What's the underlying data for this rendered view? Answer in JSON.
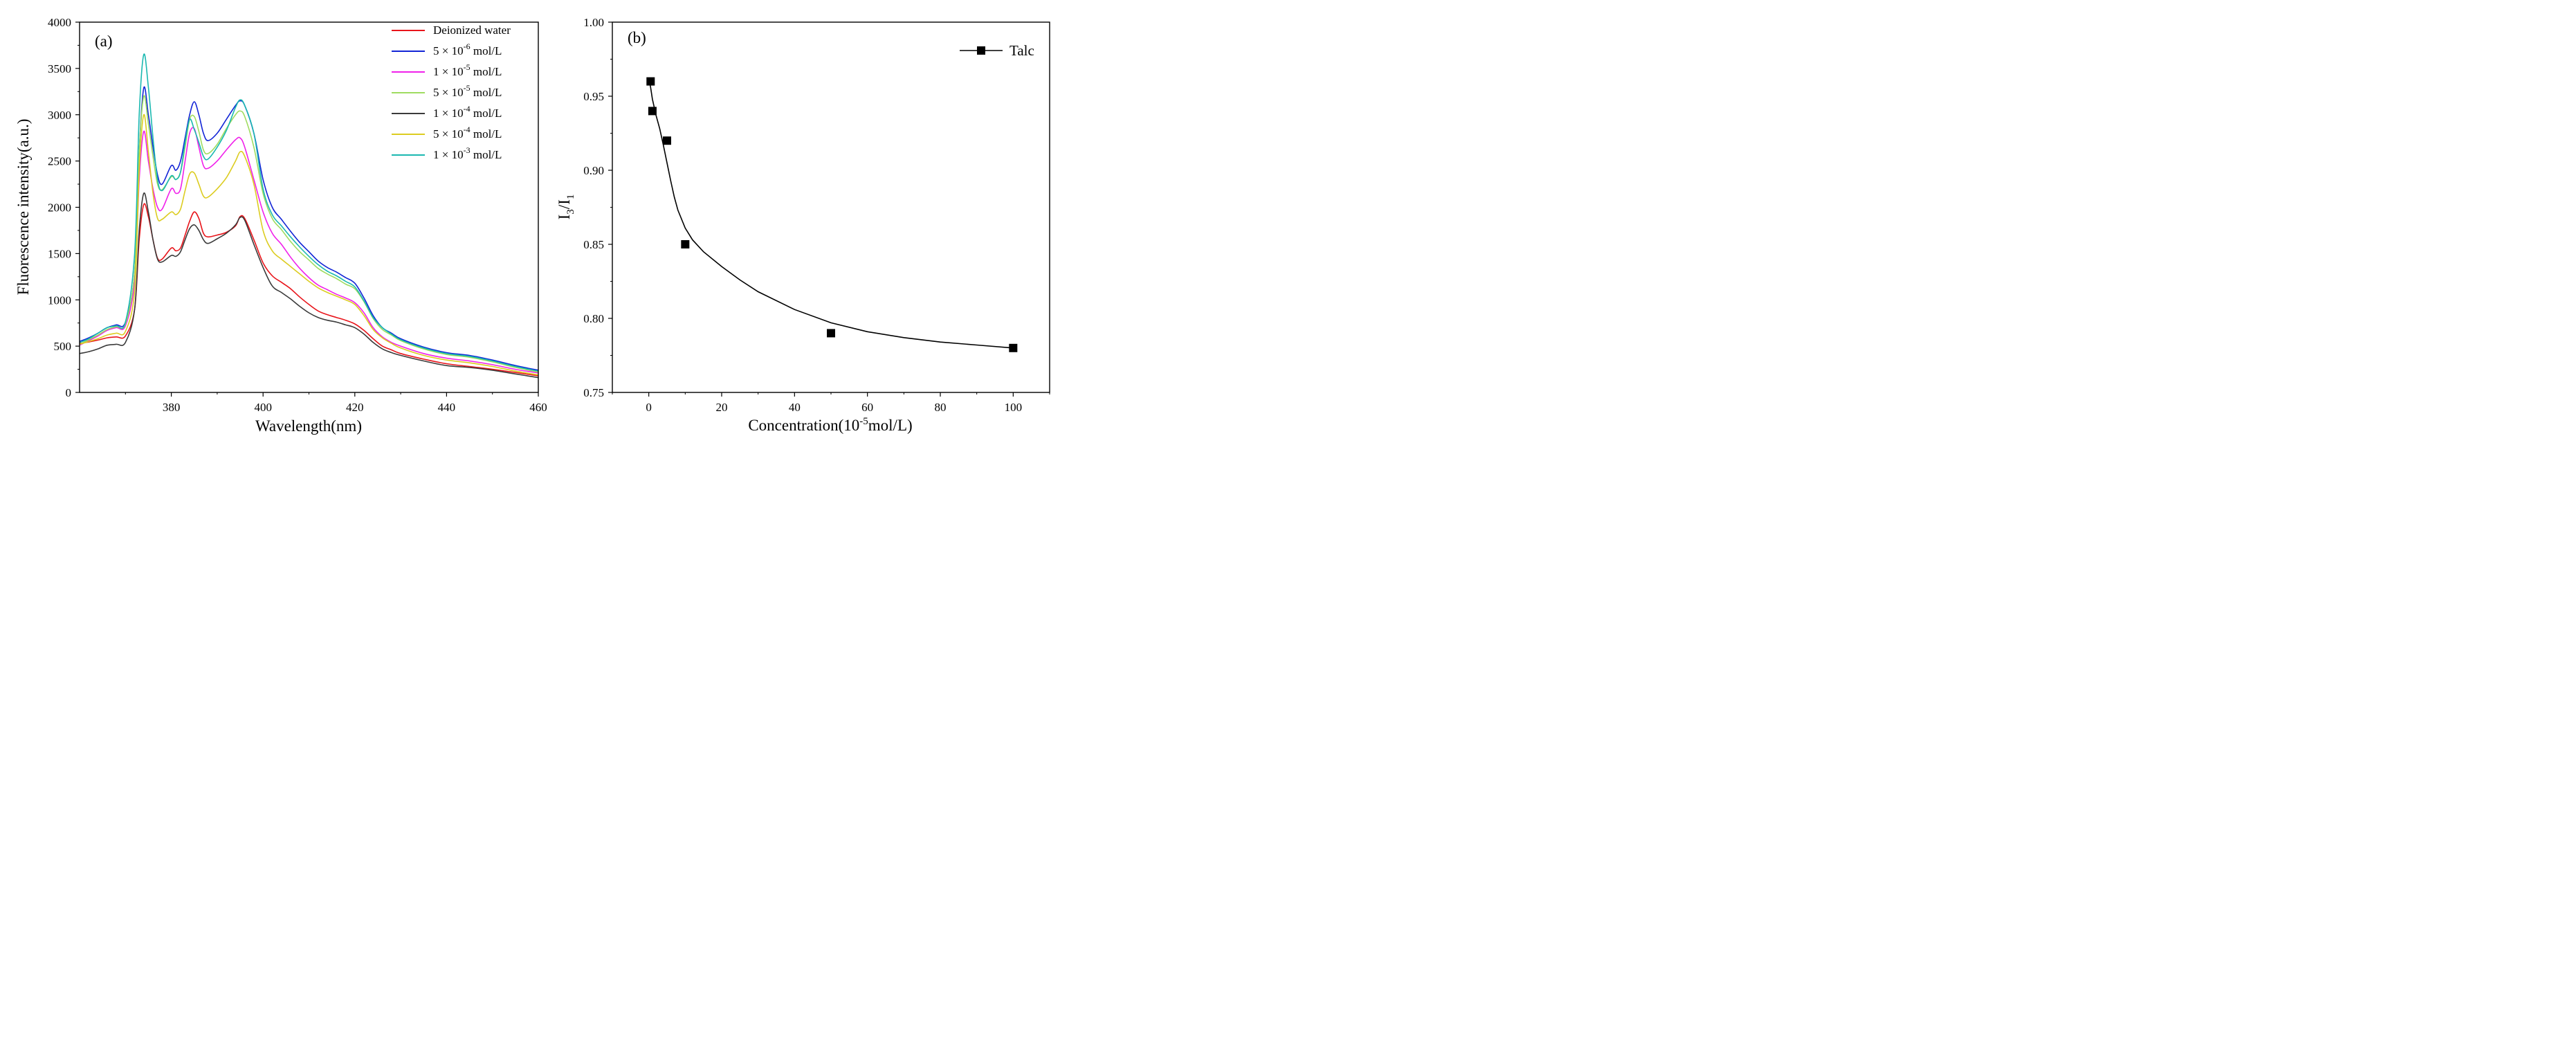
{
  "chart_data": [
    {
      "type": "line",
      "panel_label": "(a)",
      "xlabel": "Wavelength(nm)",
      "ylabel": "Fluorescence intensity(a.u.)",
      "xlim": [
        360,
        460
      ],
      "ylim": [
        0,
        4000
      ],
      "xticks": [
        380,
        400,
        420,
        440,
        460
      ],
      "yticks": [
        0,
        500,
        1000,
        1500,
        2000,
        2500,
        3000,
        3500,
        4000
      ],
      "legend_position": "top-right",
      "x": [
        360,
        362,
        364,
        366,
        368,
        370,
        372,
        373,
        374,
        375,
        376,
        377,
        378,
        380,
        381,
        382,
        383,
        384,
        385,
        386,
        387,
        388,
        390,
        392,
        394,
        395,
        396,
        398,
        400,
        402,
        404,
        406,
        408,
        410,
        412,
        414,
        416,
        418,
        420,
        422,
        424,
        426,
        428,
        430,
        435,
        440,
        445,
        450,
        455,
        460
      ],
      "series": [
        {
          "name": "Deionized water",
          "color": "#e8141a",
          "values": [
            530,
            545,
            565,
            590,
            600,
            610,
            900,
            1650,
            2030,
            1900,
            1650,
            1450,
            1440,
            1560,
            1530,
            1560,
            1700,
            1850,
            1950,
            1880,
            1720,
            1680,
            1700,
            1730,
            1800,
            1900,
            1880,
            1650,
            1400,
            1260,
            1190,
            1120,
            1030,
            950,
            880,
            840,
            810,
            780,
            740,
            670,
            580,
            500,
            460,
            420,
            360,
            310,
            280,
            250,
            215,
            180
          ]
        },
        {
          "name": "5 × 10",
          "sup": "-6",
          "unit": " mol/L",
          "color": "#1224d6",
          "values": [
            550,
            590,
            640,
            700,
            730,
            760,
            1300,
            2600,
            3290,
            3000,
            2650,
            2350,
            2250,
            2450,
            2400,
            2500,
            2750,
            3000,
            3140,
            3000,
            2800,
            2720,
            2800,
            2950,
            3100,
            3150,
            3100,
            2800,
            2300,
            2000,
            1870,
            1740,
            1620,
            1520,
            1420,
            1350,
            1300,
            1240,
            1180,
            1020,
            830,
            700,
            640,
            580,
            490,
            430,
            400,
            350,
            290,
            240
          ]
        },
        {
          "name": "1 × 10",
          "sup": "-5",
          "unit": " mol/L",
          "color": "#f020ea",
          "values": [
            510,
            560,
            610,
            670,
            700,
            720,
            1200,
            2300,
            2820,
            2500,
            2200,
            2000,
            1980,
            2200,
            2150,
            2200,
            2500,
            2800,
            2850,
            2650,
            2450,
            2420,
            2500,
            2620,
            2730,
            2750,
            2650,
            2300,
            1950,
            1720,
            1600,
            1460,
            1340,
            1240,
            1160,
            1110,
            1060,
            1020,
            970,
            860,
            700,
            600,
            540,
            500,
            420,
            370,
            340,
            300,
            250,
            210
          ]
        },
        {
          "name": "5 × 10",
          "sup": "-5",
          "unit": " mol/L",
          "color": "#9fdc60",
          "values": [
            520,
            570,
            620,
            680,
            710,
            740,
            1300,
            2600,
            3200,
            2900,
            2550,
            2250,
            2190,
            2330,
            2300,
            2380,
            2650,
            2950,
            2980,
            2820,
            2620,
            2580,
            2680,
            2850,
            3000,
            3040,
            2980,
            2650,
            2150,
            1880,
            1760,
            1630,
            1520,
            1430,
            1340,
            1280,
            1230,
            1170,
            1120,
            980,
            800,
            680,
            620,
            560,
            470,
            410,
            380,
            330,
            270,
            220
          ]
        },
        {
          "name": "1 × 10",
          "sup": "-4",
          "unit": " mol/L",
          "color": "#3a3a3a",
          "values": [
            420,
            440,
            470,
            510,
            520,
            540,
            900,
            1750,
            2150,
            1950,
            1650,
            1440,
            1410,
            1480,
            1470,
            1520,
            1650,
            1770,
            1810,
            1750,
            1650,
            1610,
            1660,
            1720,
            1810,
            1890,
            1860,
            1600,
            1350,
            1150,
            1080,
            1010,
            930,
            860,
            810,
            780,
            760,
            730,
            700,
            630,
            540,
            470,
            430,
            400,
            340,
            290,
            270,
            240,
            200,
            160
          ]
        },
        {
          "name": "5 × 10",
          "sup": "-4",
          "unit": " mol/L",
          "color": "#dccc20",
          "values": [
            520,
            550,
            580,
            620,
            640,
            660,
            1100,
            2400,
            3000,
            2600,
            2150,
            1880,
            1870,
            1950,
            1920,
            1980,
            2180,
            2360,
            2370,
            2250,
            2120,
            2110,
            2200,
            2320,
            2500,
            2600,
            2550,
            2250,
            1750,
            1530,
            1440,
            1360,
            1280,
            1200,
            1130,
            1080,
            1040,
            1000,
            950,
            830,
            680,
            590,
            530,
            480,
            400,
            350,
            320,
            280,
            230,
            190
          ]
        },
        {
          "name": "1 × 10",
          "sup": "-3",
          "unit": " mol/L",
          "color": "#1ab8b0",
          "values": [
            540,
            580,
            640,
            700,
            720,
            760,
            1500,
            3000,
            3650,
            3300,
            2750,
            2300,
            2180,
            2340,
            2300,
            2380,
            2700,
            2950,
            2840,
            2700,
            2550,
            2520,
            2650,
            2830,
            3080,
            3160,
            3100,
            2800,
            2200,
            1920,
            1800,
            1680,
            1570,
            1470,
            1380,
            1310,
            1260,
            1200,
            1140,
            990,
            810,
            700,
            630,
            570,
            480,
            420,
            390,
            340,
            280,
            230
          ]
        }
      ]
    },
    {
      "type": "scatter",
      "panel_label": "(b)",
      "xlabel": "Concentration(10",
      "xlabel_sup": "-5",
      "xlabel_rest": "mol/L)",
      "ylabel_main": "I",
      "ylabel_sub1": "3",
      "ylabel_mid": "/I",
      "ylabel_sub2": "1",
      "xlim": [
        -10,
        110
      ],
      "ylim": [
        0.75,
        1.0
      ],
      "xticks": [
        0,
        20,
        40,
        60,
        80,
        100
      ],
      "yticks": [
        "0.75",
        "0.80",
        "0.85",
        "0.90",
        "0.95",
        "1.00"
      ],
      "legend_position": "top-right",
      "series": [
        {
          "name": "Talc",
          "color": "#000000",
          "x": [
            0.5,
            1,
            5,
            10,
            50,
            100
          ],
          "y": [
            0.96,
            0.94,
            0.92,
            0.85,
            0.79,
            0.78
          ]
        }
      ],
      "fit_curve": {
        "x": [
          0,
          0.5,
          1,
          2,
          3,
          4,
          5,
          6,
          7,
          8,
          10,
          12,
          15,
          20,
          25,
          30,
          40,
          50,
          60,
          70,
          80,
          90,
          100
        ],
        "y": [
          0.962,
          0.956,
          0.948,
          0.937,
          0.928,
          0.917,
          0.905,
          0.893,
          0.882,
          0.873,
          0.861,
          0.853,
          0.845,
          0.835,
          0.826,
          0.818,
          0.806,
          0.797,
          0.791,
          0.787,
          0.784,
          0.782,
          0.78
        ]
      }
    }
  ]
}
